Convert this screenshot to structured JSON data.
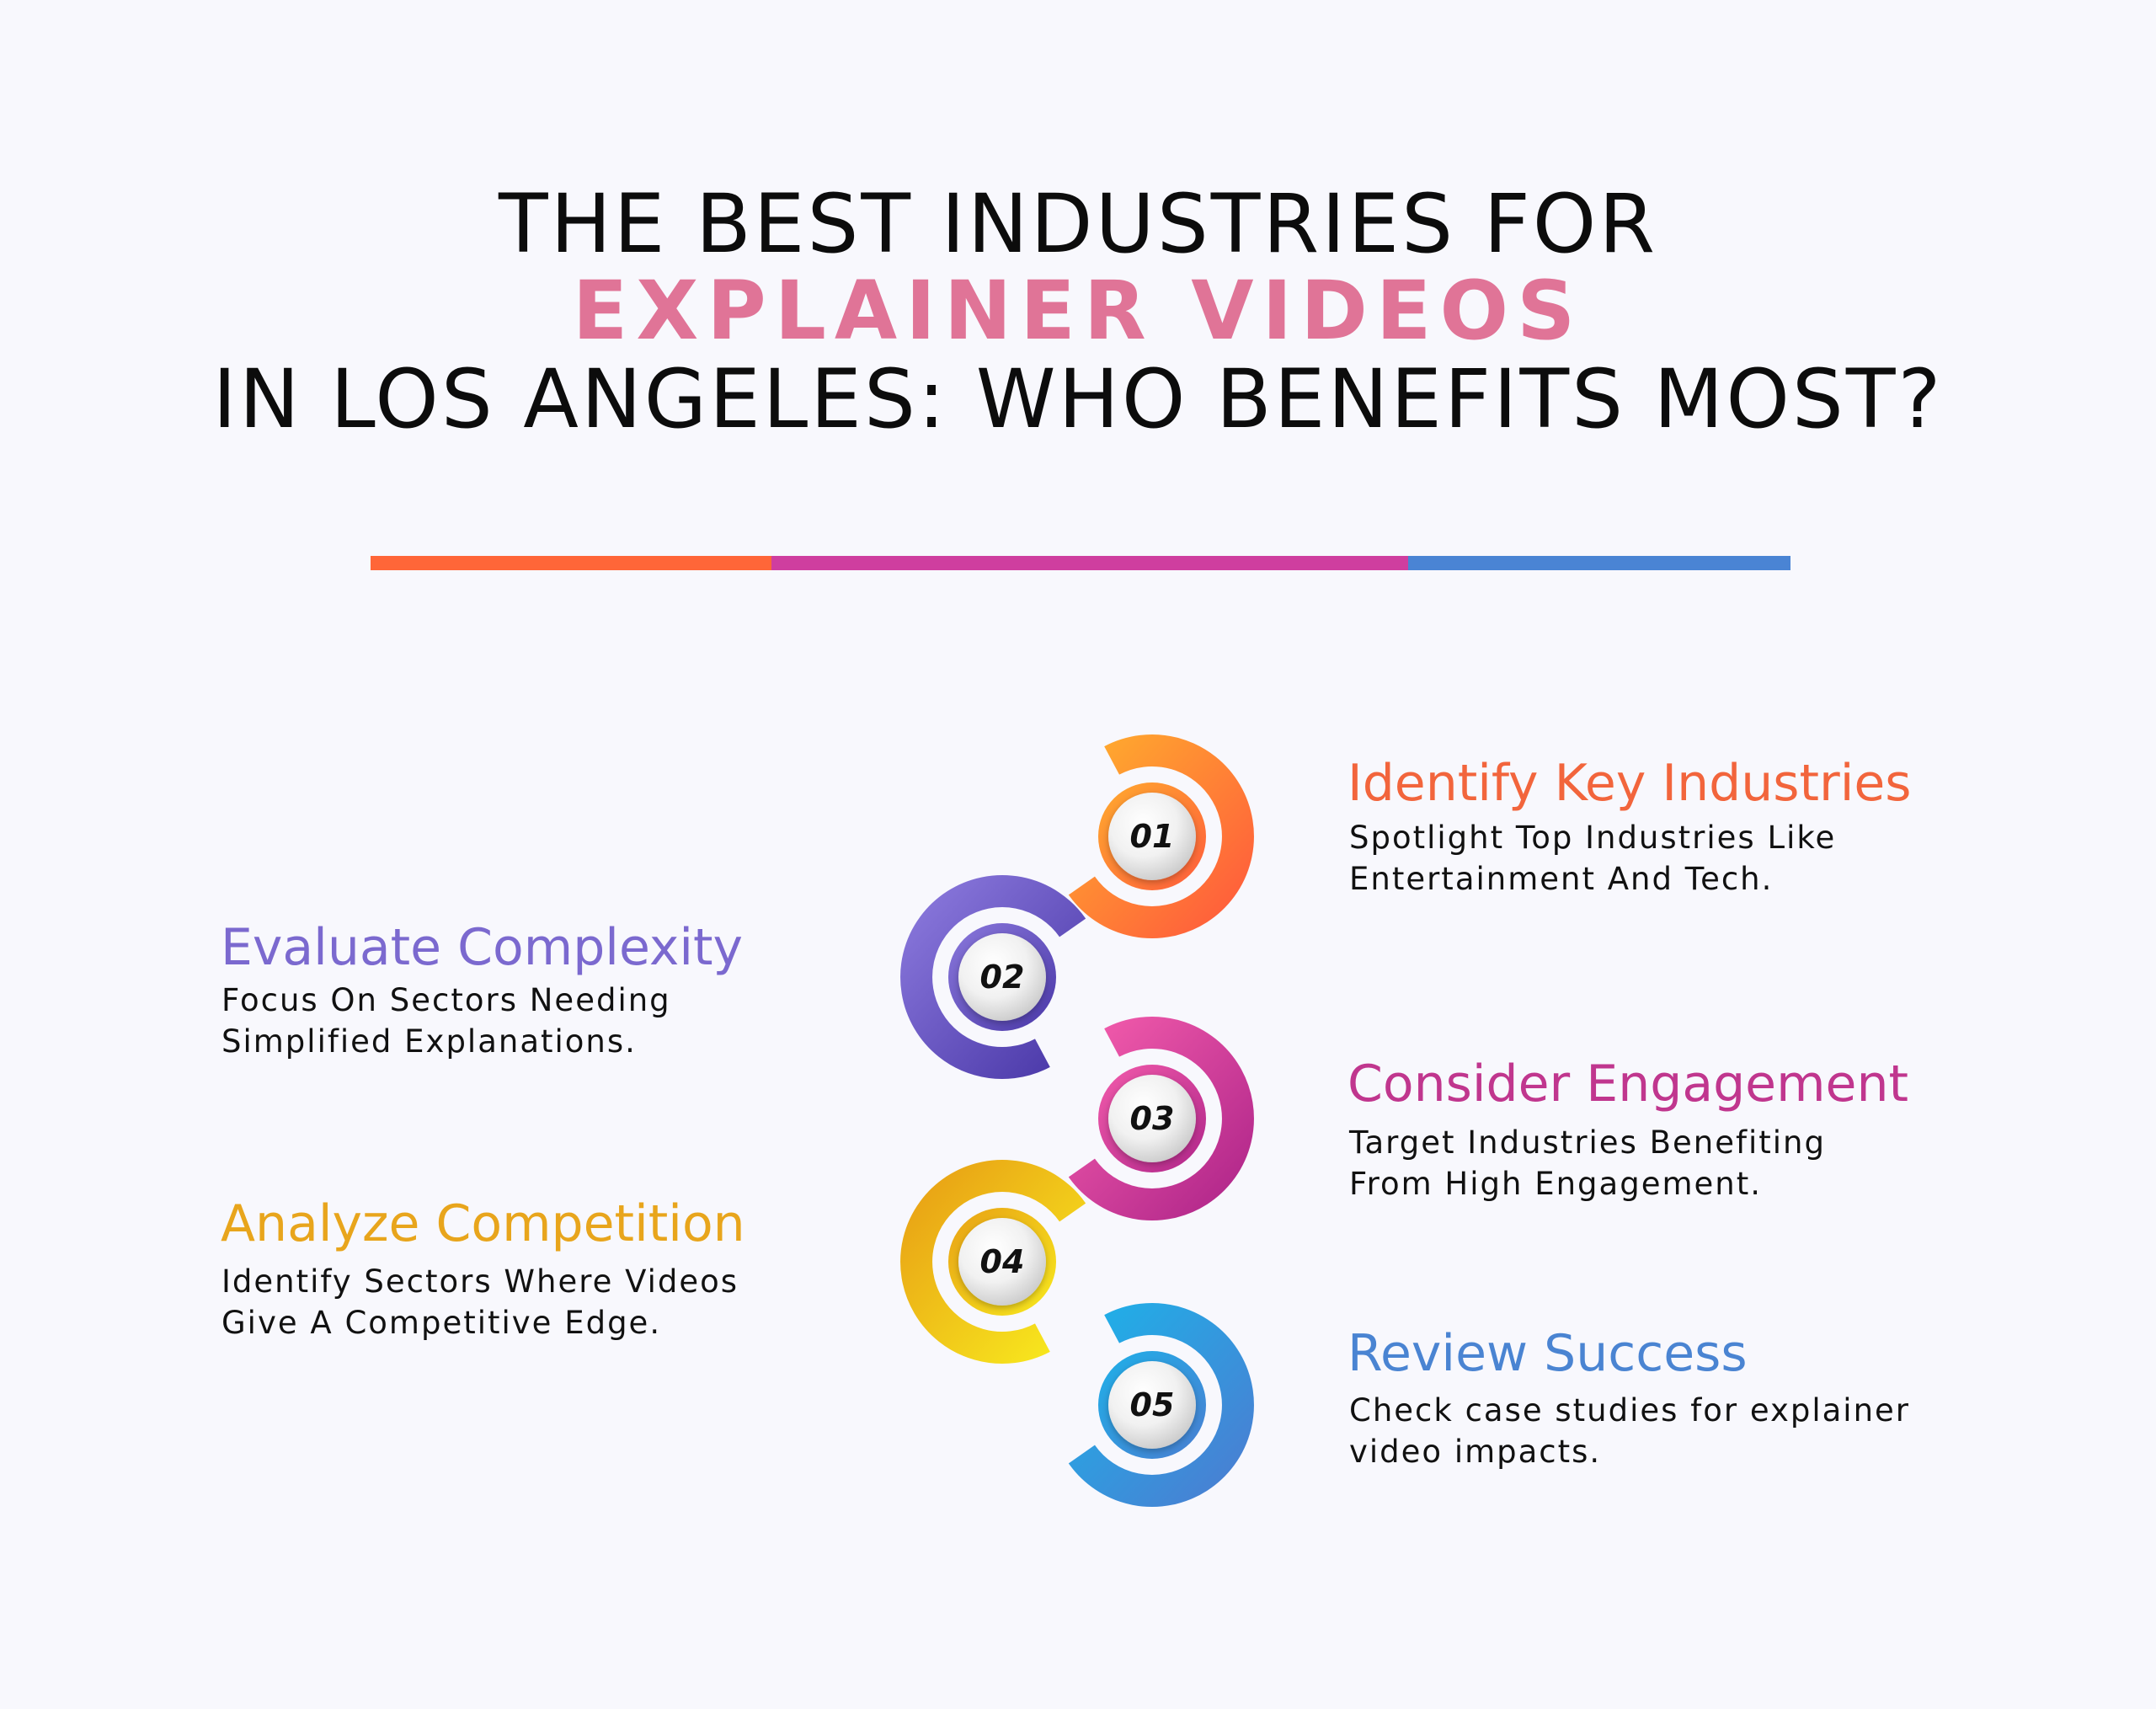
{
  "header": {
    "line1": "THE BEST INDUSTRIES FOR",
    "line2": "EXPLAINER VIDEOS",
    "line3": "IN LOS ANGELES: WHO BENEFITS MOST?",
    "highlight_color": "#e07497"
  },
  "divider_colors": [
    "#ff6638",
    "#cf3e9f",
    "#4a84d4"
  ],
  "steps": [
    {
      "number": "01",
      "title": "Identify Key Industries",
      "description": "Spotlight Top Industries Like\nEntertainment And Tech.",
      "color": "#f2653c",
      "gradient": [
        "#ffab2e",
        "#ff5b3c"
      ]
    },
    {
      "number": "02",
      "title": "Evaluate Complexity",
      "description": "Focus On Sectors Needing\nSimplified Explanations.",
      "color": "#7b69cf",
      "gradient": [
        "#8a78dc",
        "#4a38a8"
      ]
    },
    {
      "number": "03",
      "title": "Consider Engagement",
      "description": "Target Industries Benefiting\nFrom High Engagement.",
      "color": "#c0368e",
      "gradient": [
        "#f25bab",
        "#b0268a"
      ]
    },
    {
      "number": "04",
      "title": "Analyze Competition",
      "description": "Identify Sectors Where Videos\nGive A Competitive Edge.",
      "color": "#e8a51c",
      "gradient": [
        "#e8a015",
        "#f8ea1e"
      ]
    },
    {
      "number": "05",
      "title": "Review Success",
      "description": "Check case studies for explainer\nvideo impacts.",
      "color": "#4a84d2",
      "gradient": [
        "#1fb0e8",
        "#4a7ed2"
      ]
    }
  ]
}
